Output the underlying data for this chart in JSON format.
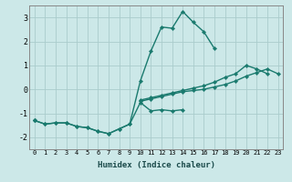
{
  "xlabel": "Humidex (Indice chaleur)",
  "x_values": [
    0,
    1,
    2,
    3,
    4,
    5,
    6,
    7,
    8,
    9,
    10,
    11,
    12,
    13,
    14,
    15,
    16,
    17,
    18,
    19,
    20,
    21,
    22,
    23
  ],
  "line1": [
    -1.3,
    -1.45,
    -1.4,
    -1.4,
    -1.55,
    -1.6,
    -1.75,
    -1.85,
    -1.65,
    -1.45,
    0.35,
    1.6,
    2.6,
    2.55,
    3.25,
    2.8,
    2.4,
    1.7,
    null,
    null,
    null,
    null,
    null,
    null
  ],
  "line2": [
    -1.3,
    -1.45,
    -1.4,
    -1.4,
    -1.55,
    -1.6,
    -1.75,
    -1.85,
    -1.65,
    -1.45,
    -0.55,
    -0.9,
    -0.85,
    -0.9,
    -0.85,
    null,
    null,
    null,
    null,
    null,
    null,
    null,
    null,
    null
  ],
  "line3": [
    -1.3,
    null,
    null,
    null,
    null,
    null,
    null,
    null,
    null,
    null,
    -0.5,
    -0.4,
    -0.3,
    -0.2,
    -0.1,
    -0.05,
    0.0,
    0.1,
    0.2,
    0.35,
    0.55,
    0.7,
    0.85,
    0.65
  ],
  "line4": [
    -1.3,
    null,
    null,
    null,
    null,
    null,
    null,
    null,
    null,
    null,
    -0.45,
    -0.35,
    -0.25,
    -0.15,
    -0.05,
    0.05,
    0.15,
    0.3,
    0.5,
    0.65,
    1.0,
    0.85,
    0.65,
    null
  ],
  "ylim": [
    -2.5,
    3.5
  ],
  "xlim": [
    -0.5,
    23.5
  ],
  "yticks": [
    -2,
    -1,
    0,
    1,
    2,
    3
  ],
  "xticks": [
    0,
    1,
    2,
    3,
    4,
    5,
    6,
    7,
    8,
    9,
    10,
    11,
    12,
    13,
    14,
    15,
    16,
    17,
    18,
    19,
    20,
    21,
    22,
    23
  ],
  "line_color": "#1a7a6e",
  "bg_color": "#cce8e8",
  "grid_color": "#aacccc",
  "marker": "D",
  "marker_size": 2.2,
  "linewidth": 1.0
}
